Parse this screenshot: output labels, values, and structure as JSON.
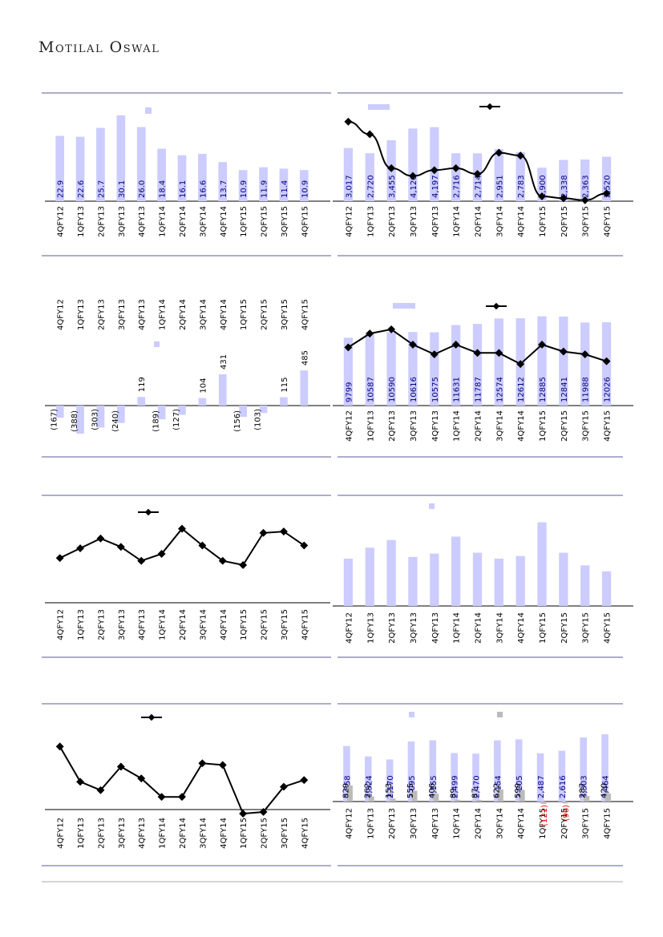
{
  "header": {
    "brand": "Motilal Oswal"
  },
  "colors": {
    "bar": "#CCCCFF",
    "bar_grey": "#BBBBBB",
    "line": "#000000",
    "frame": "#5B5B99",
    "value_text": "#000080",
    "negative_text": "#FF0000"
  },
  "quarters": [
    "4QFY12",
    "1QFY13",
    "2QFY13",
    "3QFY13",
    "4QFY13",
    "1QFY14",
    "2QFY14",
    "3QFY14",
    "4QFY14",
    "1QFY15",
    "2QFY15",
    "3QFY15",
    "4QFY15"
  ],
  "chart_data": [
    {
      "id": "c1",
      "type": "bar",
      "values": [
        22.9,
        22.6,
        25.7,
        30.1,
        26.0,
        18.4,
        16.1,
        16.6,
        13.7,
        10.9,
        11.9,
        11.4,
        10.9
      ],
      "labels": [
        "22.9",
        "22.6",
        "25.7",
        "30.1",
        "26.0",
        "18.4",
        "16.1",
        "16.6",
        "13.7",
        "10.9",
        "11.9",
        "11.4",
        "10.9"
      ],
      "ylim": [
        0,
        34
      ],
      "legend": true
    },
    {
      "id": "c2",
      "type": "bar+line",
      "values": [
        3017,
        2720,
        3455,
        4120,
        4197,
        2716,
        2714,
        2951,
        2783,
        1900,
        2338,
        2363,
        2520
      ],
      "labels": [
        "3,017",
        "2,720",
        "3,455",
        "4,120",
        "4,197",
        "2,716",
        "2,714",
        "2,951",
        "2,783",
        "1,900",
        "2,338",
        "2,363",
        "2,520"
      ],
      "line": [
        8.2,
        6.9,
        3.4,
        2.6,
        3.2,
        3.4,
        2.8,
        5.0,
        4.7,
        0.5,
        0.3,
        0.1,
        0.8
      ],
      "ylim": [
        0,
        5500
      ],
      "line_ylim": [
        0,
        10
      ],
      "legend": true
    },
    {
      "id": "c3",
      "type": "bar",
      "values": [
        -167,
        -388,
        -303,
        -240,
        119,
        -189,
        -127,
        104,
        431,
        -156,
        -103,
        115,
        485
      ],
      "labels": [
        "(167)",
        "(388)",
        "(303)",
        "(240)",
        "119",
        "(189)",
        "(127)",
        "104",
        "431",
        "(156)",
        "(103)",
        "115",
        "485"
      ],
      "ylim": [
        -500,
        600
      ],
      "legend": true
    },
    {
      "id": "c4",
      "type": "bar+line",
      "values": [
        9799,
        10587,
        10590,
        10616,
        10575,
        11631,
        11787,
        12574,
        12612,
        12885,
        12841,
        11988,
        12026
      ],
      "labels": [
        "9799",
        "10587",
        "10590",
        "10616",
        "10575",
        "11631",
        "11787",
        "12574",
        "12612",
        "12885",
        "12841",
        "11988",
        "12026"
      ],
      "line": [
        4.2,
        5.2,
        5.5,
        4.4,
        3.7,
        4.4,
        3.8,
        3.8,
        3.0,
        4.4,
        3.9,
        3.7,
        3.2
      ],
      "ylim": [
        0,
        14000
      ],
      "line_ylim": [
        0,
        7
      ],
      "legend": true
    },
    {
      "id": "c5",
      "type": "line",
      "line": [
        3.2,
        3.9,
        4.6,
        4.0,
        3.0,
        3.5,
        5.3,
        4.1,
        3.0,
        2.7,
        5.0,
        5.1,
        4.1
      ],
      "line_ylim": [
        0,
        7
      ],
      "legend": true
    },
    {
      "id": "c6",
      "type": "bar",
      "values": [
        5.6,
        6.9,
        7.8,
        5.8,
        6.2,
        8.2,
        6.3,
        5.6,
        5.9,
        9.9,
        6.3,
        4.8,
        4.1
      ],
      "ylim": [
        0,
        11
      ],
      "legend": true
    },
    {
      "id": "c7",
      "type": "line",
      "line": [
        3.5,
        1.4,
        0.9,
        2.3,
        1.6,
        0.5,
        0.5,
        2.5,
        2.4,
        -0.5,
        -0.4,
        1.1,
        1.5
      ],
      "line_ylim": [
        -1.5,
        5
      ],
      "legend": true
    },
    {
      "id": "c8",
      "type": "bar",
      "series": [
        {
          "values": [
            2858,
            2324,
            2170,
            3095,
            3155,
            2499,
            2470,
            3154,
            3205,
            2487,
            2616,
            3303,
            3464
          ],
          "labels": [
            "2,858",
            "2,324",
            "2,170",
            "3,095",
            "3,155",
            "2,499",
            "2,470",
            "3,154",
            "3,205",
            "2,487",
            "2,616",
            "3,303",
            "3,464"
          ]
        },
        {
          "values": [
            829,
            262,
            153,
            555,
            406,
            89,
            87,
            622,
            599,
            -121,
            -96,
            287,
            420
          ],
          "labels": [
            "829",
            "262",
            "153",
            "555",
            "406",
            "89",
            "87",
            "622",
            "599",
            "(121)",
            "(96)",
            "287",
            "420"
          ]
        }
      ],
      "ylim": [
        -600,
        3800
      ],
      "legend": true
    }
  ]
}
